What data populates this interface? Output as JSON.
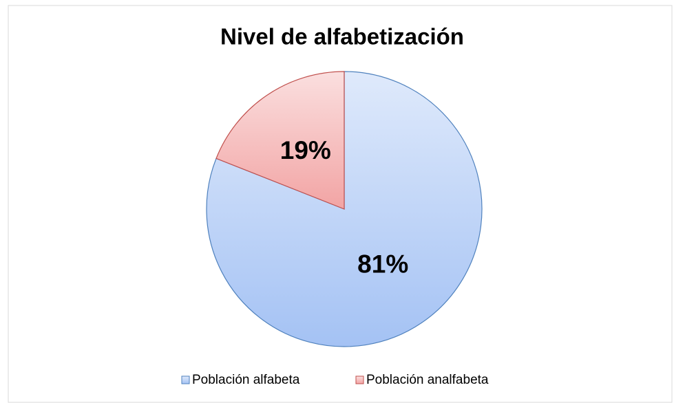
{
  "chart_data": {
    "type": "pie",
    "title": "Nivel de alfabetización",
    "categories": [
      "Población alfabeta",
      "Población analfabeta"
    ],
    "values": [
      81,
      19
    ],
    "value_labels": [
      "81%",
      "19%"
    ],
    "colors": [
      "#a4c2f4",
      "#f2a4a4"
    ],
    "legend": "bottom"
  }
}
